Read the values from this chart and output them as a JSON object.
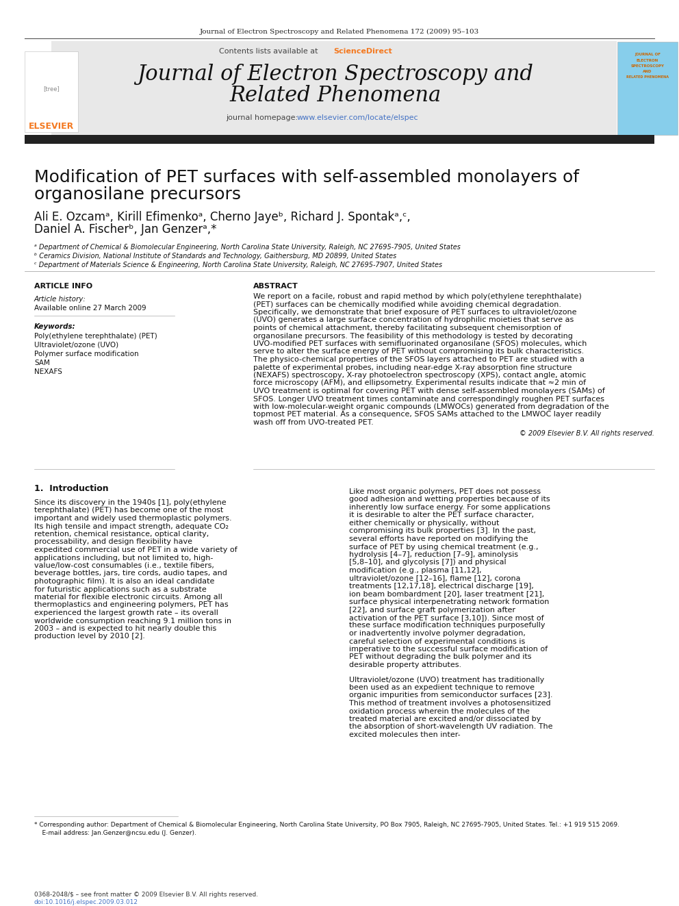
{
  "page_bg": "#ffffff",
  "header_journal_text": "Journal of Electron Spectroscopy and Related Phenomena 172 (2009) 95–103",
  "header_font_size": 7.5,
  "journal_banner_bg": "#e8e8e8",
  "journal_title_line1": "Journal of Electron Spectroscopy and",
  "journal_title_line2": "Related Phenomena",
  "journal_title_fontsize": 22,
  "contents_text": "Contents lists available at ",
  "sciencedirect_text": "ScienceDirect",
  "sciencedirect_color": "#f47920",
  "homepage_text": "journal homepage: ",
  "homepage_url": "www.elsevier.com/locate/elspec",
  "homepage_url_color": "#4472c4",
  "elsevier_logo_color": "#f47920",
  "article_title_line1": "Modification of PET surfaces with self-assembled monolayers of",
  "article_title_line2": "organosilane precursors",
  "article_title_fontsize": 18,
  "authors_line1": "Ali E. Ozcamᵃ, Kirill Efimenkoᵃ, Cherno Jayeᵇ, Richard J. Spontakᵃ,ᶜ,",
  "authors_line2": "Daniel A. Fischerᵇ, Jan Genzerᵃ,*",
  "authors_fontsize": 12,
  "affil_a": "ᵃ Department of Chemical & Biomolecular Engineering, North Carolina State University, Raleigh, NC 27695-7905, United States",
  "affil_b": "ᵇ Ceramics Division, National Institute of Standards and Technology, Gaithersburg, MD 20899, United States",
  "affil_c": "ᶜ Department of Materials Science & Engineering, North Carolina State University, Raleigh, NC 27695-7907, United States",
  "affil_fontsize": 7,
  "article_info_header": "ARTICLE INFO",
  "article_info_header_fontsize": 8,
  "article_history_label": "Article history:",
  "article_history_value": "Available online 27 March 2009",
  "keywords_label": "Keywords:",
  "keywords": [
    "Poly(ethylene terephthalate) (PET)",
    "Ultraviolet/ozone (UVO)",
    "Polymer surface modification",
    "SAM",
    "NEXAFS"
  ],
  "abstract_header": "ABSTRACT",
  "abstract_text": "We report on a facile, robust and rapid method by which poly(ethylene terephthalate) (PET) surfaces can be chemically modified while avoiding chemical degradation. Specifically, we demonstrate that brief exposure of PET surfaces to ultraviolet/ozone (UVO) generates a large surface concentration of hydrophilic moieties that serve as points of chemical attachment, thereby facilitating subsequent chemisorption of organosilane precursors. The feasibility of this methodology is tested by decorating UVO-modified PET surfaces with semifluorinated organosilane (SFOS) molecules, which serve to alter the surface energy of PET without compromising its bulk characteristics. The physico-chemical properties of the SFOS layers attached to PET are studied with a palette of experimental probes, including near-edge X-ray absorption fine structure (NEXAFS) spectroscopy, X-ray photoelectron spectroscopy (XPS), contact angle, atomic force microscopy (AFM), and ellipsometry. Experimental results indicate that ≈2 min of UVO treatment is optimal for covering PET with dense self-assembled monolayers (SAMs) of SFOS. Longer UVO treatment times contaminate and correspondingly roughen PET surfaces with low-molecular-weight organic compounds (LMWOCs) generated from degradation of the topmost PET material. As a consequence, SFOS SAMs attached to the LMWOC layer readily wash off from UVO-treated PET.",
  "abstract_copyright": "© 2009 Elsevier B.V. All rights reserved.",
  "abstract_fontsize": 8,
  "intro_header": "1.  Introduction",
  "intro_text_left": "Since its discovery in the 1940s [1], poly(ethylene terephthalate) (PET) has become one of the most important and widely used thermoplastic polymers. Its high tensile and impact strength, adequate CO₂ retention, chemical resistance, optical clarity, processability, and design flexibility have expedited commercial use of PET in a wide variety of applications including, but not limited to, high-value/low-cost consumables (i.e., textile fibers, beverage bottles, jars, tire cords, audio tapes, and photographic film). It is also an ideal candidate for futuristic applications such as a substrate material for flexible electronic circuits. Among all thermoplastics and engineering polymers, PET has experienced the largest growth rate – its overall worldwide consumption reaching 9.1 million tons in 2003 – and is expected to hit nearly double this production level by 2010 [2].",
  "intro_text_right": "Like most organic polymers, PET does not possess good adhesion and wetting properties because of its inherently low surface energy. For some applications it is desirable to alter the PET surface character, either chemically or physically, without compromising its bulk properties [3]. In the past, several efforts have reported on modifying the surface of PET by using chemical treatment (e.g., hydrolysis [4–7], reduction [7–9], aminolysis [5,8–10], and glycolysis [7]) and physical modification (e.g., plasma [11,12], ultraviolet/ozone [12–16], flame [12], corona treatments [12,17,18], electrical discharge [19], ion beam bombardment [20], laser treatment [21], surface physical interpenetrating network formation [22], and surface graft polymerization after activation of the PET surface [3,10]). Since most of these surface modification techniques purposefully or inadvertently involve polymer degradation, careful selection of experimental conditions is imperative to the successful surface modification of PET without degrading the bulk polymer and its desirable property attributes.",
  "intro_text_right2": "Ultraviolet/ozone (UVO) treatment has traditionally been used as an expedient technique to remove organic impurities from semiconductor surfaces [23]. This method of treatment involves a photosensitized oxidation process wherein the molecules of the treated material are excited and/or dissociated by the absorption of short-wavelength UV radiation. The excited molecules then inter-",
  "footnote_star": "* Corresponding author: Department of Chemical & Biomolecular Engineering, North Carolina State University, PO Box 7905, Raleigh, NC 27695-7905, United States. Tel.: +1 919 515 2069.",
  "footnote_email": "    E-mail address: Jan.Genzer@ncsu.edu (J. Genzer).",
  "footer_text1": "0368-2048/$ – see front matter © 2009 Elsevier B.V. All rights reserved.",
  "footer_text2": "doi:10.1016/j.elspec.2009.03.012",
  "body_fontsize": 8,
  "section_fontsize": 9
}
